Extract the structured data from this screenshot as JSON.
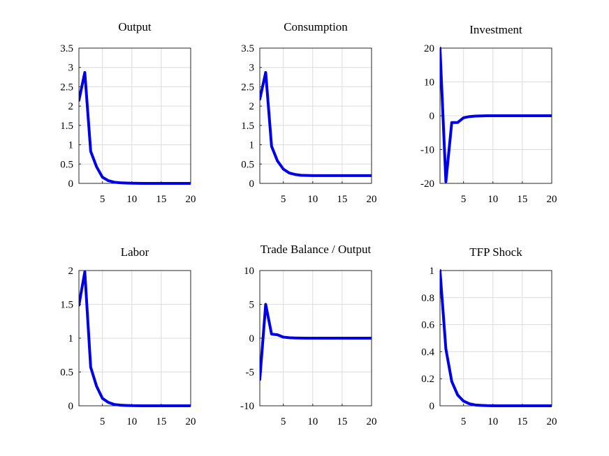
{
  "colors": {
    "line": "#0000e6",
    "grid": "#dcdcdc"
  },
  "chart_data": [
    {
      "type": "line",
      "title": "Output",
      "xlim": [
        1,
        20
      ],
      "ylim": [
        0,
        3.5
      ],
      "xticks": [
        5,
        10,
        15,
        20
      ],
      "yticks": [
        0,
        0.5,
        1,
        1.5,
        2,
        2.5,
        3,
        3.5
      ],
      "ytick_labels": [
        "0",
        "0.5",
        "1",
        "1.5",
        "2",
        "2.5",
        "3",
        "3.5"
      ],
      "grid": true,
      "x": [
        1,
        2,
        3,
        4,
        5,
        6,
        7,
        8,
        9,
        10,
        11,
        12,
        13,
        14,
        15,
        16,
        17,
        18,
        19,
        20
      ],
      "series": [
        {
          "values": [
            2.15,
            2.87,
            0.83,
            0.43,
            0.16,
            0.07,
            0.03,
            0.015,
            0.008,
            0.004,
            0.002,
            0.001,
            0,
            0,
            0,
            0,
            0,
            0,
            0,
            0
          ]
        }
      ]
    },
    {
      "type": "line",
      "title": "Consumption",
      "xlim": [
        1,
        20
      ],
      "ylim": [
        0,
        3.5
      ],
      "xticks": [
        5,
        10,
        15,
        20
      ],
      "yticks": [
        0,
        0.5,
        1,
        1.5,
        2,
        2.5,
        3,
        3.5
      ],
      "ytick_labels": [
        "0",
        "0.5",
        "1",
        "1.5",
        "2",
        "2.5",
        "3",
        "3.5"
      ],
      "grid": true,
      "x": [
        1,
        2,
        3,
        4,
        5,
        6,
        7,
        8,
        9,
        10,
        11,
        12,
        13,
        14,
        15,
        16,
        17,
        18,
        19,
        20
      ],
      "series": [
        {
          "values": [
            2.18,
            2.87,
            0.96,
            0.58,
            0.37,
            0.27,
            0.23,
            0.21,
            0.205,
            0.2,
            0.2,
            0.2,
            0.2,
            0.2,
            0.2,
            0.2,
            0.2,
            0.2,
            0.2,
            0.2
          ]
        }
      ]
    },
    {
      "type": "line",
      "title": "Investment",
      "xlim": [
        1,
        20
      ],
      "ylim": [
        -20,
        20
      ],
      "xticks": [
        5,
        10,
        15,
        20
      ],
      "yticks": [
        -20,
        -10,
        0,
        10,
        20
      ],
      "ytick_labels": [
        "-20",
        "-10",
        "0",
        "10",
        "20"
      ],
      "grid": true,
      "x": [
        1,
        2,
        3,
        4,
        5,
        6,
        7,
        8,
        9,
        10,
        11,
        12,
        13,
        14,
        15,
        16,
        17,
        18,
        19,
        20
      ],
      "series": [
        {
          "values": [
            20,
            -19.5,
            -2,
            -2,
            -0.6,
            -0.25,
            -0.1,
            -0.05,
            0,
            0,
            0,
            0,
            0,
            0,
            0,
            0,
            0,
            0,
            0,
            0
          ]
        }
      ]
    },
    {
      "type": "line",
      "title": "Labor",
      "xlim": [
        1,
        20
      ],
      "ylim": [
        0,
        2
      ],
      "xticks": [
        5,
        10,
        15,
        20
      ],
      "yticks": [
        0,
        0.5,
        1,
        1.5,
        2
      ],
      "ytick_labels": [
        "0",
        "0.5",
        "1",
        "1.5",
        "2"
      ],
      "grid": true,
      "x": [
        1,
        2,
        3,
        4,
        5,
        6,
        7,
        8,
        9,
        10,
        11,
        12,
        13,
        14,
        15,
        16,
        17,
        18,
        19,
        20
      ],
      "series": [
        {
          "values": [
            1.49,
            1.98,
            0.57,
            0.29,
            0.11,
            0.05,
            0.02,
            0.01,
            0.005,
            0.002,
            0.001,
            0,
            0,
            0,
            0,
            0,
            0,
            0,
            0,
            0
          ]
        }
      ]
    },
    {
      "type": "line",
      "title": "Trade Balance / Output",
      "xlim": [
        1,
        20
      ],
      "ylim": [
        -10,
        10
      ],
      "xticks": [
        5,
        10,
        15,
        20
      ],
      "yticks": [
        -10,
        -5,
        0,
        5,
        10
      ],
      "ytick_labels": [
        "-10",
        "-5",
        "0",
        "5",
        "10"
      ],
      "grid": true,
      "x": [
        1,
        2,
        3,
        4,
        5,
        6,
        7,
        8,
        9,
        10,
        11,
        12,
        13,
        14,
        15,
        16,
        17,
        18,
        19,
        20
      ],
      "series": [
        {
          "values": [
            -6.1,
            5.0,
            0.6,
            0.5,
            0.15,
            0.06,
            0.03,
            0.01,
            0,
            0,
            0,
            0,
            0,
            0,
            0,
            0,
            0,
            0,
            0,
            0
          ]
        }
      ]
    },
    {
      "type": "line",
      "title": "TFP Shock",
      "xlim": [
        1,
        20
      ],
      "ylim": [
        0,
        1
      ],
      "xticks": [
        5,
        10,
        15,
        20
      ],
      "yticks": [
        0,
        0.2,
        0.4,
        0.6,
        0.8,
        1
      ],
      "ytick_labels": [
        "0",
        "0.2",
        "0.4",
        "0.6",
        "0.8",
        "1"
      ],
      "grid": true,
      "x": [
        1,
        2,
        3,
        4,
        5,
        6,
        7,
        8,
        9,
        10,
        11,
        12,
        13,
        14,
        15,
        16,
        17,
        18,
        19,
        20
      ],
      "series": [
        {
          "values": [
            1.0,
            0.42,
            0.18,
            0.08,
            0.035,
            0.015,
            0.006,
            0.003,
            0.001,
            0,
            0,
            0,
            0,
            0,
            0,
            0,
            0,
            0,
            0,
            0
          ]
        }
      ]
    }
  ]
}
